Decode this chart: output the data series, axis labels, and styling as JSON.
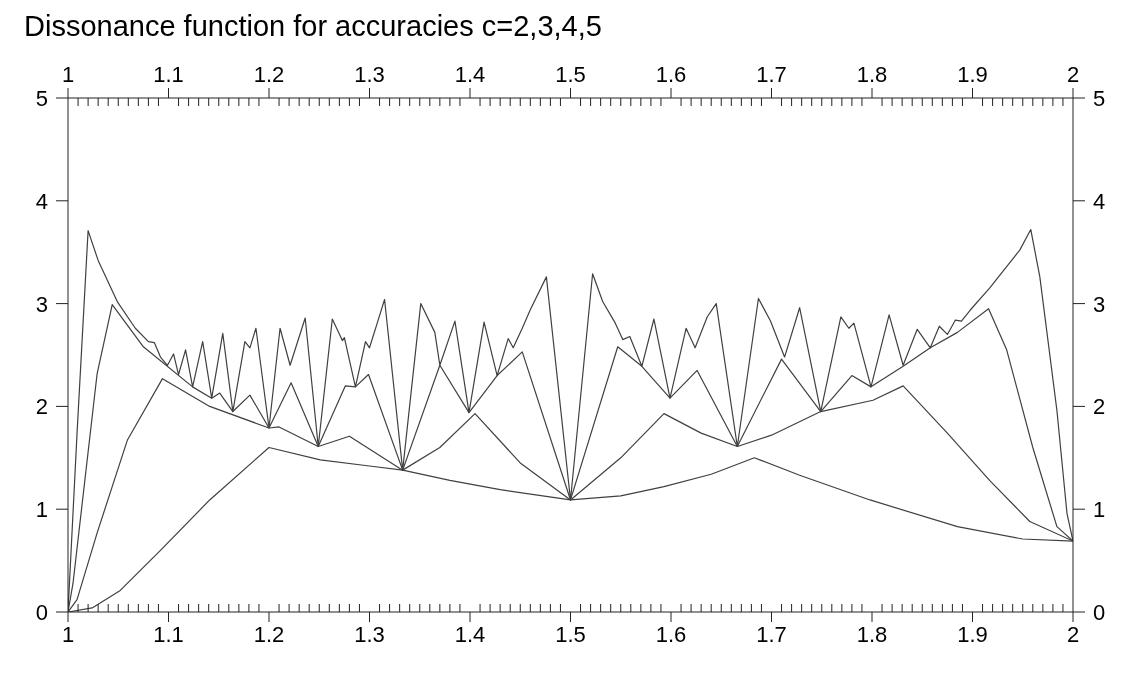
{
  "chart_data": {
    "type": "line",
    "title": "Dissonance function for accuracies c=2,3,4,5",
    "xlim": [
      1,
      2
    ],
    "ylim": [
      0,
      5
    ],
    "x2lim": [
      1,
      2
    ],
    "y2lim": [
      0,
      5
    ],
    "xticks": [
      1,
      {
        "value": 1.01,
        "label": null
      },
      {
        "value": 1.02,
        "label": null
      },
      {
        "value": 1.03,
        "label": null
      },
      {
        "value": 1.04,
        "label": null
      },
      {
        "value": 1.05,
        "label": null
      },
      {
        "value": 1.06,
        "label": null
      },
      {
        "value": 1.07,
        "label": null
      },
      {
        "value": 1.08,
        "label": null
      },
      {
        "value": 1.09,
        "label": null
      },
      1.1,
      {
        "value": 1.11,
        "label": null
      },
      {
        "value": 1.12,
        "label": null
      },
      {
        "value": 1.13,
        "label": null
      },
      {
        "value": 1.14,
        "label": null
      },
      {
        "value": 1.15,
        "label": null
      },
      {
        "value": 1.16,
        "label": null
      },
      {
        "value": 1.17,
        "label": null
      },
      {
        "value": 1.18,
        "label": null
      },
      {
        "value": 1.19,
        "label": null
      },
      1.2,
      {
        "value": 1.21,
        "label": null
      },
      {
        "value": 1.22,
        "label": null
      },
      {
        "value": 1.23,
        "label": null
      },
      {
        "value": 1.24,
        "label": null
      },
      {
        "value": 1.25,
        "label": null
      },
      {
        "value": 1.26,
        "label": null
      },
      {
        "value": 1.27,
        "label": null
      },
      {
        "value": 1.28,
        "label": null
      },
      {
        "value": 1.29,
        "label": null
      },
      1.3,
      {
        "value": 1.31,
        "label": null
      },
      {
        "value": 1.32,
        "label": null
      },
      {
        "value": 1.33,
        "label": null
      },
      {
        "value": 1.34,
        "label": null
      },
      {
        "value": 1.35,
        "label": null
      },
      {
        "value": 1.36,
        "label": null
      },
      {
        "value": 1.37,
        "label": null
      },
      {
        "value": 1.38,
        "label": null
      },
      {
        "value": 1.39,
        "label": null
      },
      1.4,
      {
        "value": 1.41,
        "label": null
      },
      {
        "value": 1.42,
        "label": null
      },
      {
        "value": 1.43,
        "label": null
      },
      {
        "value": 1.44,
        "label": null
      },
      {
        "value": 1.45,
        "label": null
      },
      {
        "value": 1.46,
        "label": null
      },
      {
        "value": 1.47,
        "label": null
      },
      {
        "value": 1.48,
        "label": null
      },
      {
        "value": 1.49,
        "label": null
      },
      1.5,
      {
        "value": 1.51,
        "label": null
      },
      {
        "value": 1.52,
        "label": null
      },
      {
        "value": 1.53,
        "label": null
      },
      {
        "value": 1.54,
        "label": null
      },
      {
        "value": 1.55,
        "label": null
      },
      {
        "value": 1.56,
        "label": null
      },
      {
        "value": 1.57,
        "label": null
      },
      {
        "value": 1.58,
        "label": null
      },
      {
        "value": 1.59,
        "label": null
      },
      1.6,
      {
        "value": 1.61,
        "label": null
      },
      {
        "value": 1.62,
        "label": null
      },
      {
        "value": 1.63,
        "label": null
      },
      {
        "value": 1.64,
        "label": null
      },
      {
        "value": 1.65,
        "label": null
      },
      {
        "value": 1.66,
        "label": null
      },
      {
        "value": 1.67,
        "label": null
      },
      {
        "value": 1.68,
        "label": null
      },
      {
        "value": 1.69,
        "label": null
      },
      1.7,
      {
        "value": 1.71,
        "label": null
      },
      {
        "value": 1.72,
        "label": null
      },
      {
        "value": 1.73,
        "label": null
      },
      {
        "value": 1.74,
        "label": null
      },
      {
        "value": 1.75,
        "label": null
      },
      {
        "value": 1.76,
        "label": null
      },
      {
        "value": 1.77,
        "label": null
      },
      {
        "value": 1.78,
        "label": null
      },
      {
        "value": 1.79,
        "label": null
      },
      1.8,
      {
        "value": 1.81,
        "label": null
      },
      {
        "value": 1.82,
        "label": null
      },
      {
        "value": 1.83,
        "label": null
      },
      {
        "value": 1.84,
        "label": null
      },
      {
        "value": 1.85,
        "label": null
      },
      {
        "value": 1.86,
        "label": null
      },
      {
        "value": 1.87,
        "label": null
      },
      {
        "value": 1.88,
        "label": null
      },
      {
        "value": 1.89,
        "label": null
      },
      1.9,
      {
        "value": 1.91,
        "label": null
      },
      {
        "value": 1.92,
        "label": null
      },
      {
        "value": 1.93,
        "label": null
      },
      {
        "value": 1.94,
        "label": null
      },
      {
        "value": 1.95,
        "label": null
      },
      {
        "value": 1.96,
        "label": null
      },
      {
        "value": 1.97,
        "label": null
      },
      {
        "value": 1.98,
        "label": null
      },
      {
        "value": 1.99,
        "label": null
      },
      2
    ],
    "x2ticks": [
      1,
      {
        "value": 1.01,
        "label": null
      },
      {
        "value": 1.02,
        "label": null
      },
      {
        "value": 1.03,
        "label": null
      },
      {
        "value": 1.04,
        "label": null
      },
      {
        "value": 1.05,
        "label": null
      },
      {
        "value": 1.06,
        "label": null
      },
      {
        "value": 1.07,
        "label": null
      },
      {
        "value": 1.08,
        "label": null
      },
      {
        "value": 1.09,
        "label": null
      },
      1.1,
      {
        "value": 1.11,
        "label": null
      },
      {
        "value": 1.12,
        "label": null
      },
      {
        "value": 1.13,
        "label": null
      },
      {
        "value": 1.14,
        "label": null
      },
      {
        "value": 1.15,
        "label": null
      },
      {
        "value": 1.16,
        "label": null
      },
      {
        "value": 1.17,
        "label": null
      },
      {
        "value": 1.18,
        "label": null
      },
      {
        "value": 1.19,
        "label": null
      },
      1.2,
      {
        "value": 1.21,
        "label": null
      },
      {
        "value": 1.22,
        "label": null
      },
      {
        "value": 1.23,
        "label": null
      },
      {
        "value": 1.24,
        "label": null
      },
      {
        "value": 1.25,
        "label": null
      },
      {
        "value": 1.26,
        "label": null
      },
      {
        "value": 1.27,
        "label": null
      },
      {
        "value": 1.28,
        "label": null
      },
      {
        "value": 1.29,
        "label": null
      },
      1.3,
      {
        "value": 1.31,
        "label": null
      },
      {
        "value": 1.32,
        "label": null
      },
      {
        "value": 1.33,
        "label": null
      },
      {
        "value": 1.34,
        "label": null
      },
      {
        "value": 1.35,
        "label": null
      },
      {
        "value": 1.36,
        "label": null
      },
      {
        "value": 1.37,
        "label": null
      },
      {
        "value": 1.38,
        "label": null
      },
      {
        "value": 1.39,
        "label": null
      },
      1.4,
      {
        "value": 1.41,
        "label": null
      },
      {
        "value": 1.42,
        "label": null
      },
      {
        "value": 1.43,
        "label": null
      },
      {
        "value": 1.44,
        "label": null
      },
      {
        "value": 1.45,
        "label": null
      },
      {
        "value": 1.46,
        "label": null
      },
      {
        "value": 1.47,
        "label": null
      },
      {
        "value": 1.48,
        "label": null
      },
      {
        "value": 1.49,
        "label": null
      },
      1.5,
      {
        "value": 1.51,
        "label": null
      },
      {
        "value": 1.52,
        "label": null
      },
      {
        "value": 1.53,
        "label": null
      },
      {
        "value": 1.54,
        "label": null
      },
      {
        "value": 1.55,
        "label": null
      },
      {
        "value": 1.56,
        "label": null
      },
      {
        "value": 1.57,
        "label": null
      },
      {
        "value": 1.58,
        "label": null
      },
      {
        "value": 1.59,
        "label": null
      },
      1.6,
      {
        "value": 1.61,
        "label": null
      },
      {
        "value": 1.62,
        "label": null
      },
      {
        "value": 1.63,
        "label": null
      },
      {
        "value": 1.64,
        "label": null
      },
      {
        "value": 1.65,
        "label": null
      },
      {
        "value": 1.66,
        "label": null
      },
      {
        "value": 1.67,
        "label": null
      },
      {
        "value": 1.68,
        "label": null
      },
      {
        "value": 1.69,
        "label": null
      },
      1.7,
      {
        "value": 1.71,
        "label": null
      },
      {
        "value": 1.72,
        "label": null
      },
      {
        "value": 1.73,
        "label": null
      },
      {
        "value": 1.74,
        "label": null
      },
      {
        "value": 1.75,
        "label": null
      },
      {
        "value": 1.76,
        "label": null
      },
      {
        "value": 1.77,
        "label": null
      },
      {
        "value": 1.78,
        "label": null
      },
      {
        "value": 1.79,
        "label": null
      },
      1.8,
      {
        "value": 1.81,
        "label": null
      },
      {
        "value": 1.82,
        "label": null
      },
      {
        "value": 1.83,
        "label": null
      },
      {
        "value": 1.84,
        "label": null
      },
      {
        "value": 1.85,
        "label": null
      },
      {
        "value": 1.86,
        "label": null
      },
      {
        "value": 1.87,
        "label": null
      },
      {
        "value": 1.88,
        "label": null
      },
      {
        "value": 1.89,
        "label": null
      },
      1.9,
      {
        "value": 1.91,
        "label": null
      },
      {
        "value": 1.92,
        "label": null
      },
      {
        "value": 1.93,
        "label": null
      },
      {
        "value": 1.94,
        "label": null
      },
      {
        "value": 1.95,
        "label": null
      },
      {
        "value": 1.96,
        "label": null
      },
      {
        "value": 1.97,
        "label": null
      },
      {
        "value": 1.98,
        "label": null
      },
      {
        "value": 1.99,
        "label": null
      },
      2
    ],
    "yticks": [
      0,
      1,
      2,
      3,
      4,
      5
    ],
    "y2ticks": [
      0,
      1,
      2,
      3,
      4,
      5
    ],
    "series": [
      {
        "color": "#404040",
        "x": [
          1,
          1.024,
          1.052,
          1.092,
          1.141,
          1.2,
          1.251,
          1.3,
          1.333,
          1.38,
          1.43,
          1.5,
          1.55,
          1.593,
          1.64,
          1.683,
          1.728,
          1.798,
          1.885,
          1.95,
          2
        ],
        "values": [
          0,
          0.04,
          0.21,
          0.6,
          1.09,
          1.6,
          1.48,
          1.42,
          1.38,
          1.28,
          1.19,
          1.09,
          1.13,
          1.22,
          1.34,
          1.5,
          1.33,
          1.09,
          0.83,
          0.71,
          0.69
        ]
      },
      {
        "color": "#404040",
        "x": [
          1,
          1.009,
          1.029,
          1.059,
          1.094,
          1.141,
          1.2,
          1.21,
          1.249,
          1.28,
          1.333,
          1.37,
          1.405,
          1.45,
          1.5,
          1.55,
          1.593,
          1.63,
          1.666,
          1.7,
          1.749,
          1.801,
          1.831,
          1.875,
          1.917,
          1.957,
          2
        ],
        "values": [
          0,
          0.12,
          0.77,
          1.67,
          2.27,
          2,
          1.79,
          1.8,
          1.61,
          1.71,
          1.38,
          1.6,
          1.93,
          1.45,
          1.09,
          1.5,
          1.93,
          1.74,
          1.61,
          1.72,
          1.95,
          2.06,
          2.2,
          1.74,
          1.28,
          0.88,
          0.69
        ]
      },
      {
        "color": "#404040",
        "x": [
          1,
          1.005,
          1.029,
          1.044,
          1.075,
          1.124,
          1.143,
          1.151,
          1.164,
          1.181,
          1.2,
          1.222,
          1.249,
          1.276,
          1.286,
          1.299,
          1.333,
          1.37,
          1.399,
          1.427,
          1.452,
          1.5,
          1.547,
          1.571,
          1.599,
          1.626,
          1.666,
          1.71,
          1.749,
          1.78,
          1.799,
          1.831,
          1.858,
          1.885,
          1.916,
          1.934,
          1.96,
          1.984,
          2
        ],
        "values": [
          0,
          0.28,
          2.32,
          2.99,
          2.58,
          2.19,
          2.08,
          2.13,
          1.95,
          2.11,
          1.79,
          2.23,
          1.61,
          2.2,
          2.19,
          2.31,
          1.38,
          2.4,
          1.94,
          2.3,
          2.53,
          1.09,
          2.58,
          2.39,
          2.08,
          2.35,
          1.61,
          2.46,
          1.95,
          2.3,
          2.19,
          2.39,
          2.57,
          2.72,
          2.95,
          2.55,
          1.6,
          0.83,
          0.69
        ]
      },
      {
        "color": "#404040",
        "x": [
          1,
          1.009,
          1.02,
          1.03,
          1.049,
          1.067,
          1.08,
          1.086,
          1.092,
          1.099,
          1.105,
          1.11,
          1.117,
          1.124,
          1.134,
          1.143,
          1.154,
          1.164,
          1.176,
          1.181,
          1.187,
          1.2,
          1.211,
          1.221,
          1.236,
          1.249,
          1.263,
          1.273,
          1.275,
          1.286,
          1.296,
          1.3,
          1.308,
          1.315,
          1.333,
          1.351,
          1.365,
          1.37,
          1.385,
          1.399,
          1.414,
          1.427,
          1.438,
          1.443,
          1.452,
          1.46,
          1.476,
          1.5,
          1.522,
          1.532,
          1.544,
          1.552,
          1.559,
          1.571,
          1.583,
          1.599,
          1.615,
          1.624,
          1.636,
          1.645,
          1.666,
          1.687,
          1.699,
          1.713,
          1.728,
          1.749,
          1.769,
          1.777,
          1.782,
          1.799,
          1.817,
          1.831,
          1.845,
          1.858,
          1.867,
          1.875,
          1.883,
          1.889,
          1.898,
          1.917,
          1.947,
          1.958,
          1.967,
          1.984,
          1.994,
          2
        ],
        "values": [
          0,
          1.74,
          3.71,
          3.42,
          3.02,
          2.76,
          2.63,
          2.62,
          2.48,
          2.4,
          2.51,
          2.31,
          2.55,
          2.19,
          2.63,
          2.08,
          2.71,
          1.95,
          2.63,
          2.57,
          2.76,
          1.79,
          2.76,
          2.4,
          2.86,
          1.61,
          2.85,
          2.64,
          2.67,
          2.19,
          2.63,
          2.57,
          2.82,
          3.04,
          1.38,
          3,
          2.72,
          2.4,
          2.83,
          1.94,
          2.82,
          2.3,
          2.66,
          2.57,
          2.76,
          2.94,
          3.26,
          1.09,
          3.29,
          3.02,
          2.82,
          2.65,
          2.68,
          2.39,
          2.85,
          2.08,
          2.76,
          2.57,
          2.87,
          3,
          1.61,
          3.05,
          2.83,
          2.48,
          2.96,
          1.95,
          2.87,
          2.76,
          2.81,
          2.19,
          2.89,
          2.4,
          2.75,
          2.57,
          2.78,
          2.7,
          2.84,
          2.83,
          2.94,
          3.15,
          3.52,
          3.72,
          3.26,
          1.96,
          0.96,
          0.69
        ]
      }
    ]
  }
}
